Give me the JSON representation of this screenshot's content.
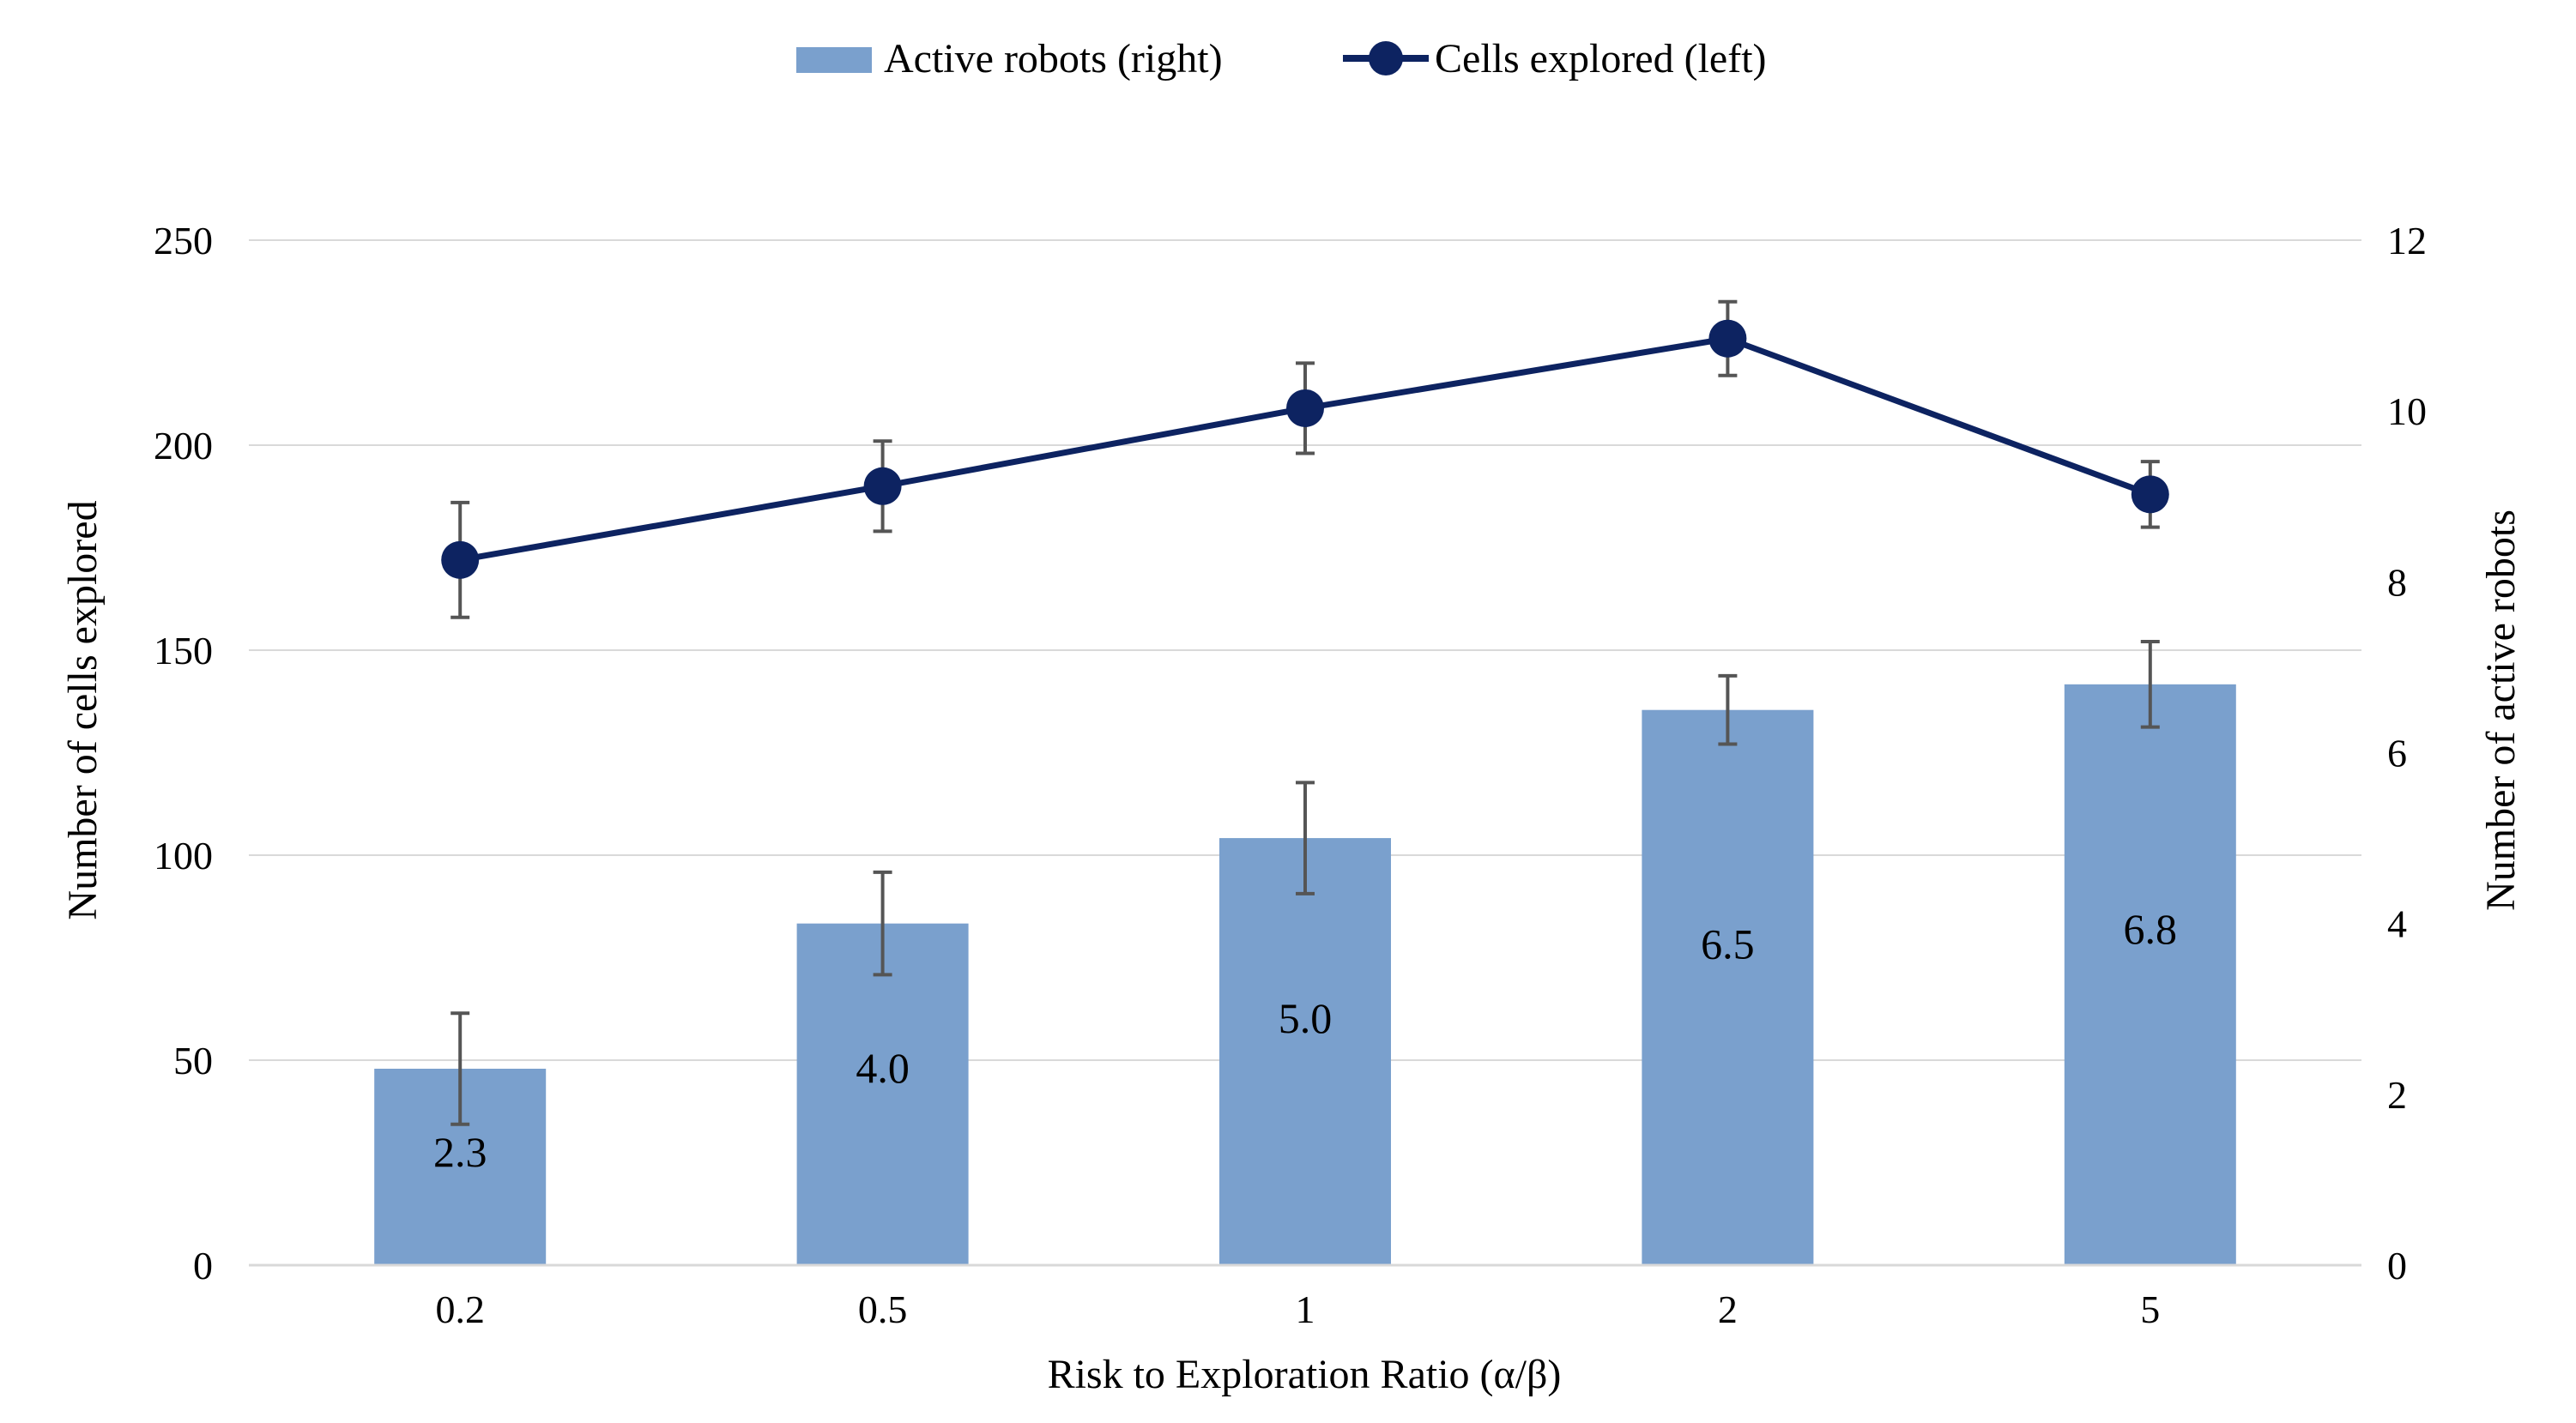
{
  "chart_data": {
    "type": "bar+line",
    "categories": [
      "0.2",
      "0.5",
      "1",
      "2",
      "5"
    ],
    "xlabel": "Risk to Exploration Ratio (α/β)",
    "ylabel_left": "Number of cells explored",
    "ylabel_right": "Number of active robots",
    "ylim_left": [
      0,
      250
    ],
    "yticks_left": [
      "0",
      "50",
      "100",
      "150",
      "200",
      "250"
    ],
    "ylim_right": [
      0,
      12
    ],
    "yticks_right": [
      "0",
      "2",
      "4",
      "6",
      "8",
      "10",
      "12"
    ],
    "grid": true,
    "legend_position": "top-center",
    "series": [
      {
        "name": "Active robots (right)",
        "type": "bar",
        "axis": "right",
        "color": "#7aa0cd",
        "values": [
          2.3,
          4.0,
          5.0,
          6.5,
          6.8
        ],
        "data_labels": [
          "2.3",
          "4.0",
          "5.0",
          "6.5",
          "6.8"
        ],
        "error": [
          0.65,
          0.6,
          0.65,
          0.4,
          0.5
        ]
      },
      {
        "name": "Cells explored (left)",
        "type": "line",
        "axis": "left",
        "color": "#0d2361",
        "values": [
          172,
          190,
          209,
          226,
          188
        ],
        "error": [
          14,
          11,
          11,
          9,
          8
        ]
      }
    ]
  }
}
